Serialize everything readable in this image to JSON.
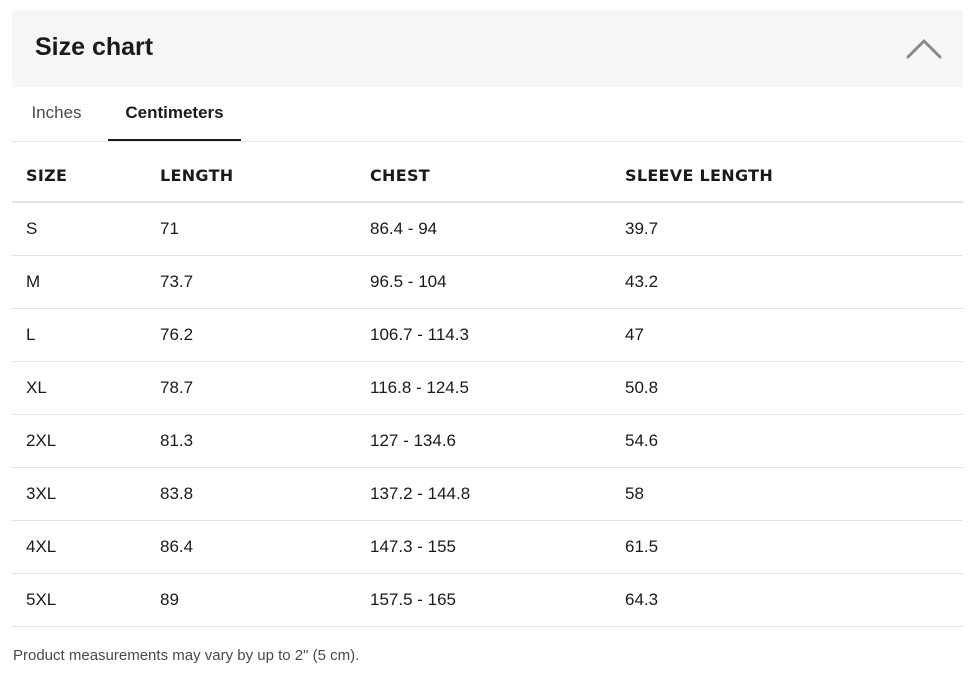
{
  "header": {
    "title": "Size chart",
    "toggle_icon": "chevron-up-icon"
  },
  "tabs": [
    {
      "label": "Inches",
      "active": false
    },
    {
      "label": "Centimeters",
      "active": true
    }
  ],
  "table": {
    "columns": [
      "SIZE",
      "LENGTH",
      "CHEST",
      "SLEEVE LENGTH"
    ],
    "rows": [
      [
        "S",
        "71",
        "86.4 - 94",
        "39.7"
      ],
      [
        "M",
        "73.7",
        "96.5 - 104",
        "43.2"
      ],
      [
        "L",
        "76.2",
        "106.7 - 114.3",
        "47"
      ],
      [
        "XL",
        "78.7",
        "116.8 - 124.5",
        "50.8"
      ],
      [
        "2XL",
        "81.3",
        "127 - 134.6",
        "54.6"
      ],
      [
        "3XL",
        "83.8",
        "137.2 - 144.8",
        "58"
      ],
      [
        "4XL",
        "86.4",
        "147.3 - 155",
        "61.5"
      ],
      [
        "5XL",
        "89",
        "157.5 - 165",
        "64.3"
      ]
    ]
  },
  "footer": {
    "note": "Product measurements may vary by up to 2\" (5 cm)."
  },
  "colors": {
    "header_bg": "#f6f6f6",
    "text": "#1a1a1a",
    "muted_text": "#4a4a4a",
    "divider": "#e3e3e3"
  }
}
